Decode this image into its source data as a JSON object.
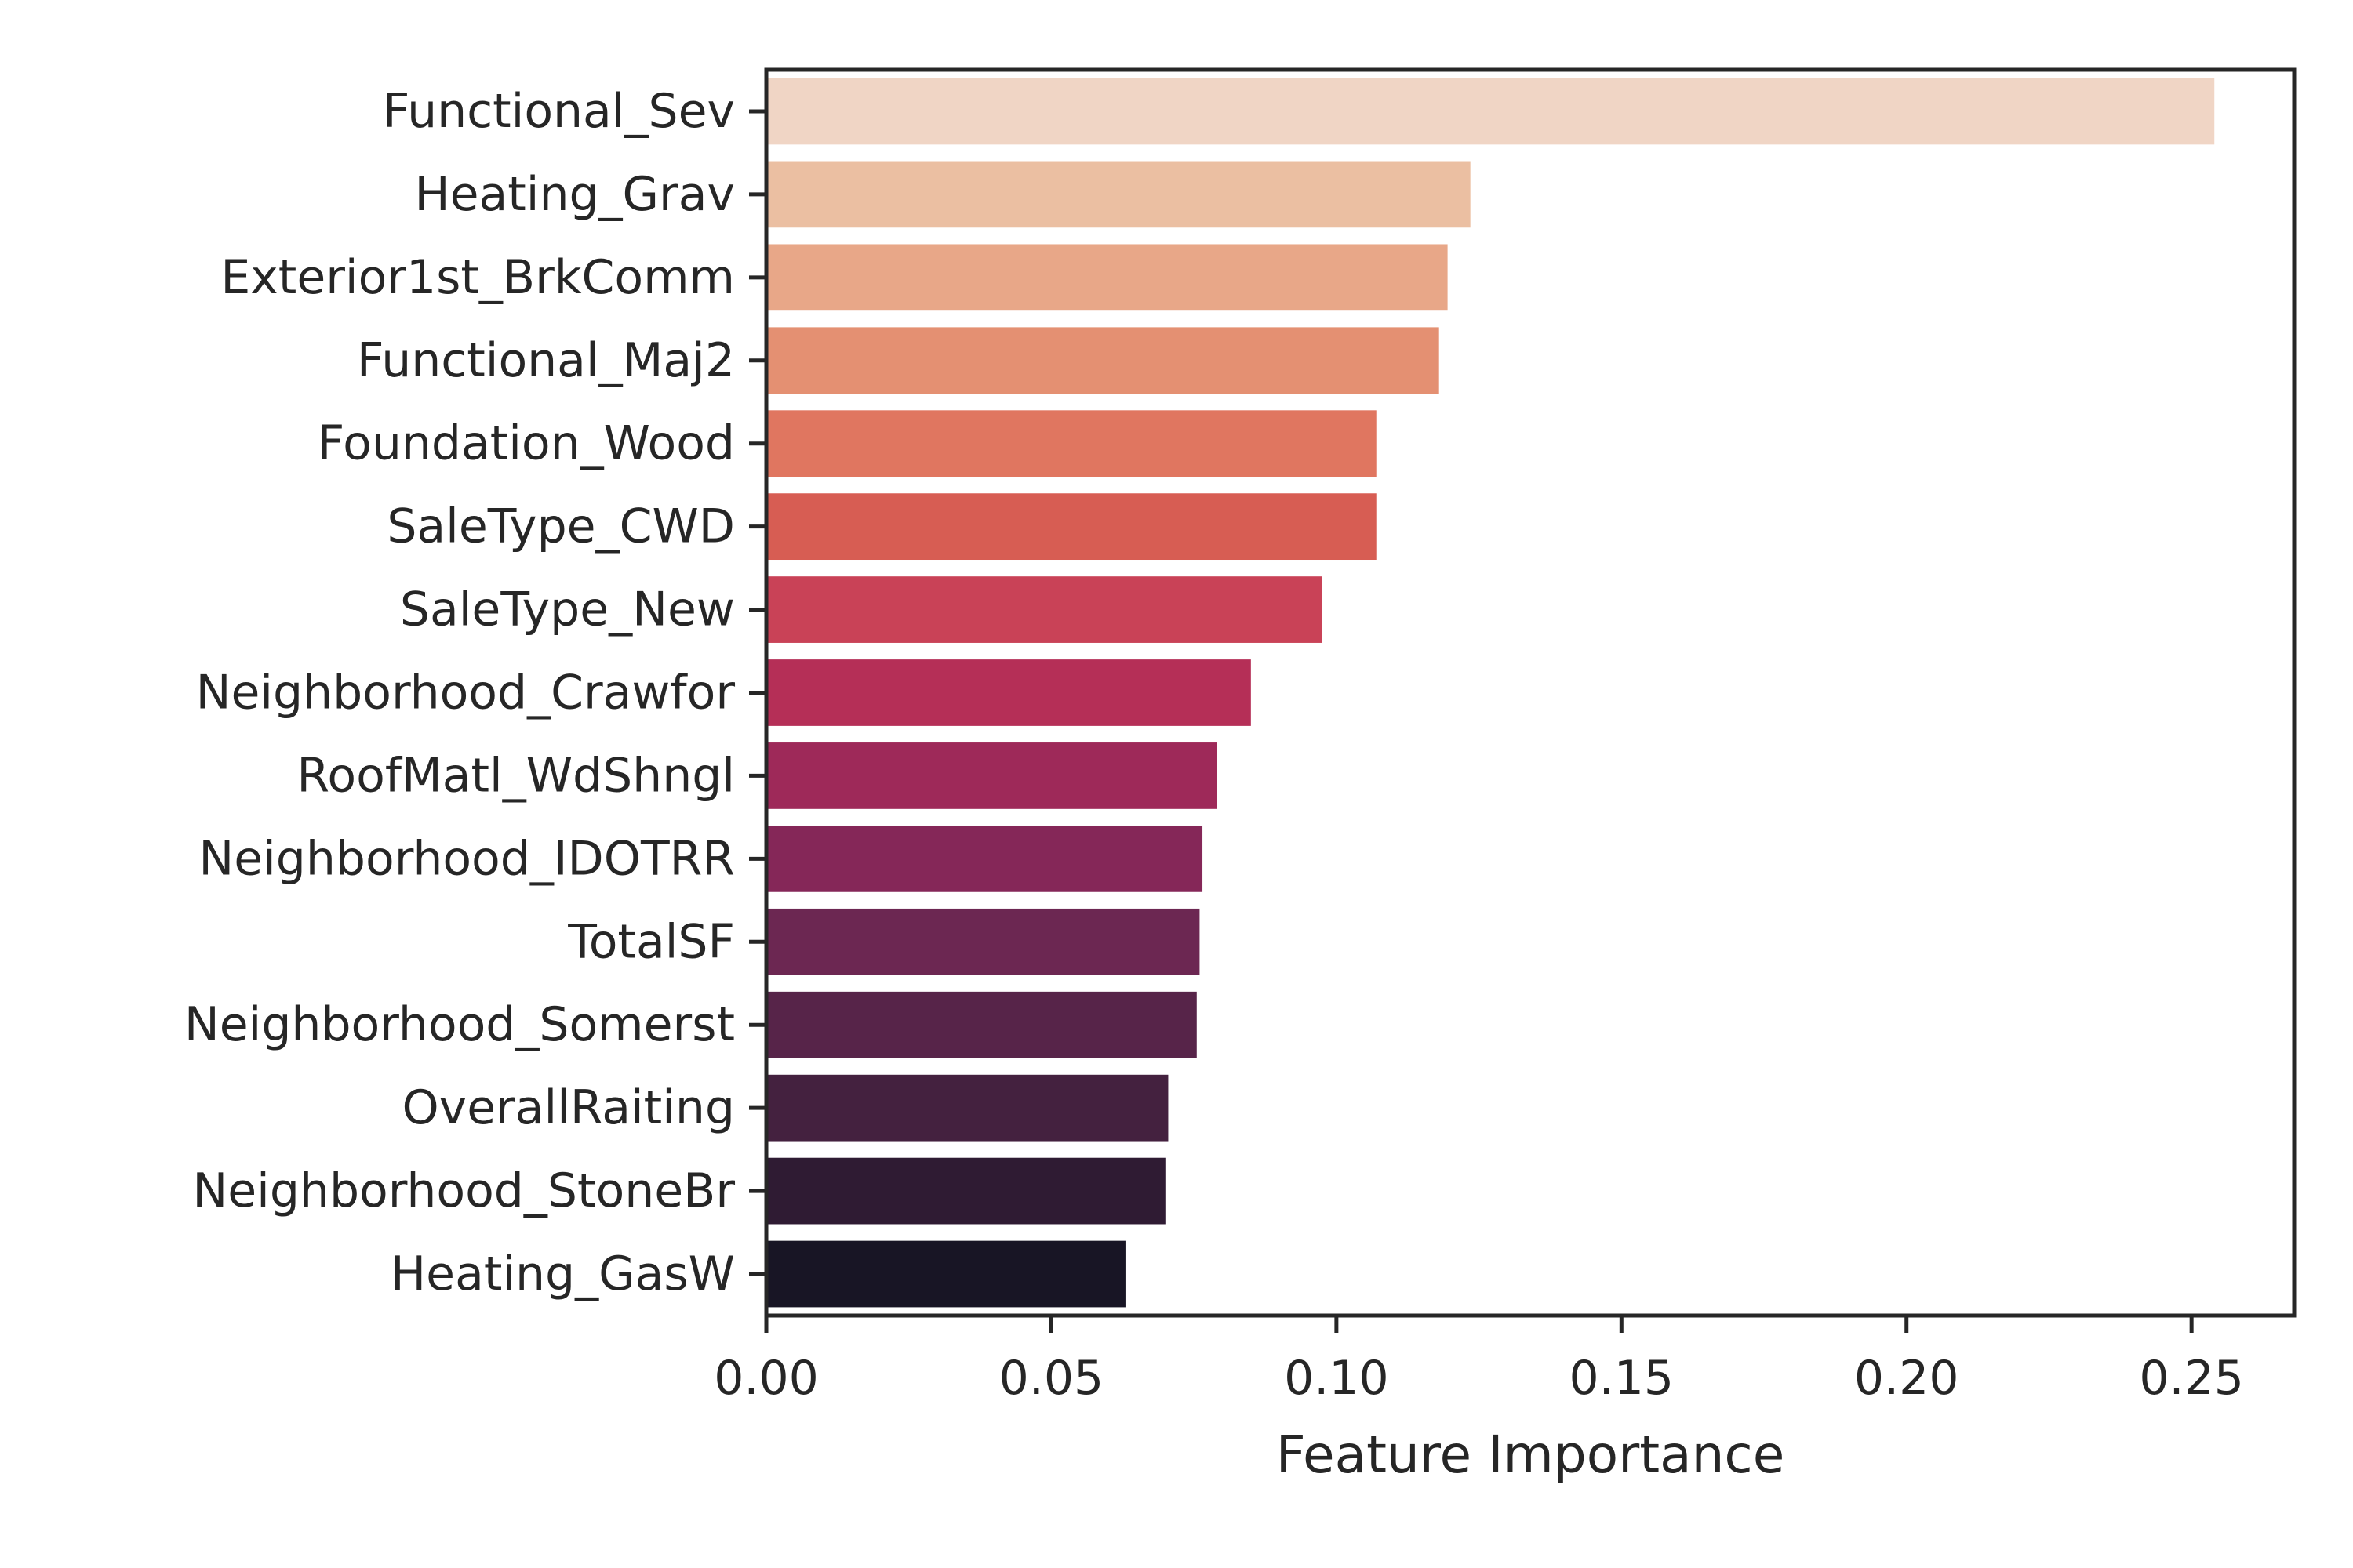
{
  "chart_data": {
    "type": "bar",
    "orientation": "horizontal",
    "title": "",
    "xlabel": "Feature Importance",
    "ylabel": "",
    "xlim": [
      0,
      0.268
    ],
    "xticks": [
      "0.00",
      "0.05",
      "0.10",
      "0.15",
      "0.20",
      "0.25"
    ],
    "grid": false,
    "legend": "none",
    "categories": [
      "Functional_Sev",
      "Heating_Grav",
      "Exterior1st_BrkComm",
      "Functional_Maj2",
      "Foundation_Wood",
      "SaleType_CWD",
      "SaleType_New",
      "Neighborhood_Crawfor",
      "RoofMatl_WdShngl",
      "Neighborhood_IDOTRR",
      "TotalSF",
      "Neighborhood_Somerst",
      "OverallRaiting",
      "Neighborhood_StoneBr",
      "Heating_GasW"
    ],
    "values": [
      0.254,
      0.1235,
      0.1195,
      0.118,
      0.107,
      0.107,
      0.0975,
      0.085,
      0.079,
      0.0765,
      0.076,
      0.0755,
      0.0705,
      0.07,
      0.063
    ],
    "colors": [
      "#f0d5c5",
      "#ebbfa2",
      "#e8a788",
      "#e49072",
      "#e07660",
      "#d75d53",
      "#c94257",
      "#b52f57",
      "#9e2959",
      "#852758",
      "#6c2752",
      "#572449",
      "#44213f",
      "#2f1b33",
      "#181525"
    ],
    "frame_color": "#262626"
  }
}
